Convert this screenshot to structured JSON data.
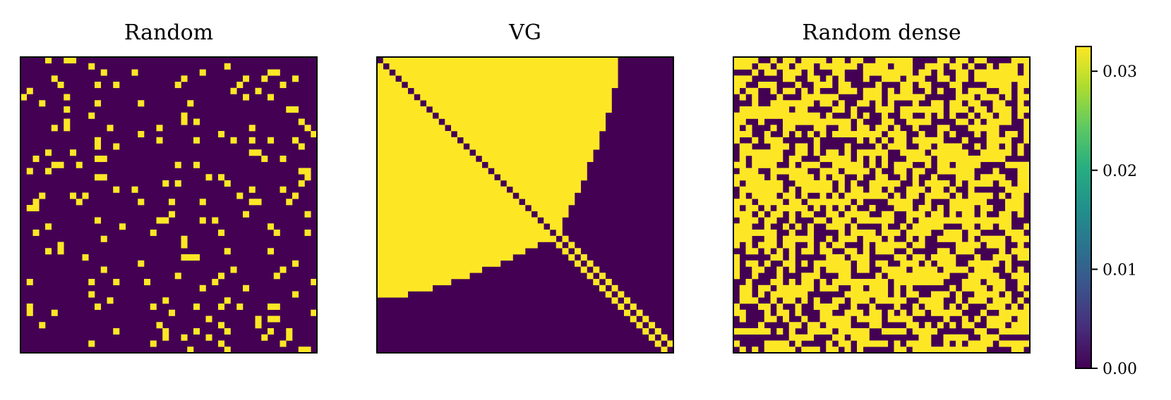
{
  "chart_data": [
    {
      "type": "heatmap",
      "title": "Random",
      "pattern": "random-sparse",
      "grid_size": 48,
      "fill_fraction": 0.08,
      "seed": 7,
      "xticks": false,
      "yticks": false
    },
    {
      "type": "heatmap",
      "title": "VG",
      "pattern": "visibility-graph",
      "grid_size": 48,
      "xticks": false,
      "yticks": false
    },
    {
      "type": "heatmap",
      "title": "Random dense",
      "pattern": "random-dense",
      "grid_size": 48,
      "fill_fraction": 0.6,
      "seed": 11,
      "xticks": false,
      "yticks": false
    }
  ],
  "colorbar": {
    "colormap": "viridis",
    "vmin": 0.0,
    "vmax": 0.0325,
    "ticks": [
      0.0,
      0.01,
      0.02,
      0.03
    ],
    "tick_labels": [
      "0.00",
      "0.01",
      "0.02",
      "0.03"
    ]
  },
  "colors": {
    "low": "#440154",
    "high": "#fde725",
    "frame": "#000000"
  }
}
